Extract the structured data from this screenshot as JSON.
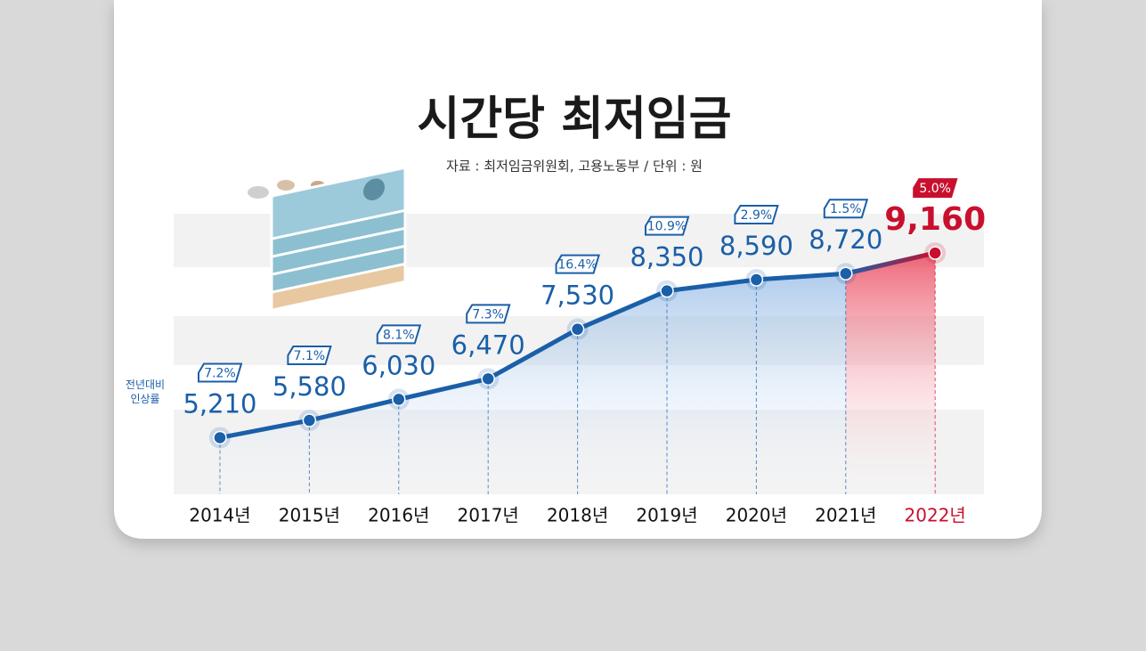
{
  "chart_data": {
    "type": "line",
    "title": "시간당 최저임금",
    "subtitle": "자료 : 최저임금위원회, 고용노동부 / 단위 : 원",
    "categories": [
      "2014년",
      "2015년",
      "2016년",
      "2017년",
      "2018년",
      "2019년",
      "2020년",
      "2021년",
      "2022년"
    ],
    "values": [
      5210,
      5580,
      6030,
      6470,
      7530,
      8350,
      8590,
      8720,
      9160
    ],
    "value_labels": [
      "5,210",
      "5,580",
      "6,030",
      "6,470",
      "7,530",
      "8,350",
      "8,590",
      "8,720",
      "9,160"
    ],
    "color": "#1a5fa8",
    "colors": [
      "#1a5fa8",
      "#1a5fa8",
      "#1a5fa8",
      "#1a5fa8",
      "#1a5fa8",
      "#1a5fa8",
      "#1a5fa8",
      "#1a5fa8",
      "#c8102e"
    ],
    "rate_name": "전년대비 인상률",
    "rates": [
      7.2,
      7.1,
      8.1,
      7.3,
      16.4,
      10.9,
      2.9,
      1.5,
      5.0
    ],
    "rate_labels": [
      "7.2%",
      "7.1%",
      "8.1%",
      "7.3%",
      "16.4%",
      "10.9%",
      "2.9%",
      "1.5%",
      "5.0%"
    ],
    "ylim": [
      4000,
      10000
    ]
  }
}
